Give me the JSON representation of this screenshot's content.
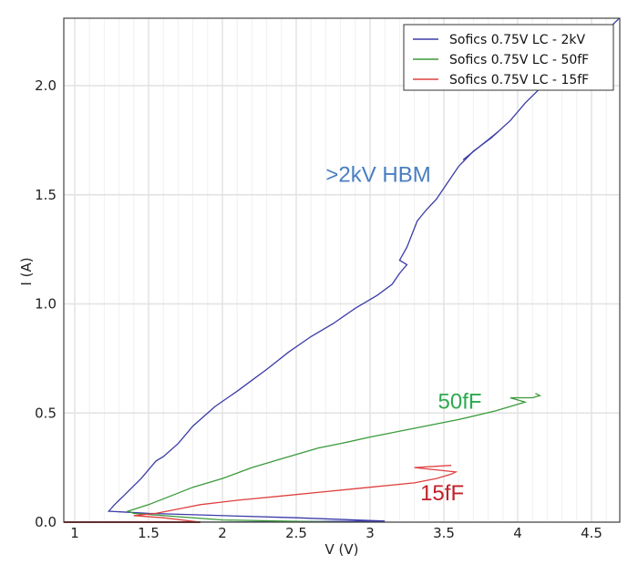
{
  "chart_data": {
    "type": "line",
    "title": "",
    "xlabel": "V (V)",
    "ylabel": "I (A)",
    "xlim": [
      0.93,
      4.69
    ],
    "ylim": [
      0.0,
      2.31
    ],
    "x_ticks": [
      1,
      1.5,
      2,
      2.5,
      3,
      3.5,
      4,
      4.5
    ],
    "x_tick_labels": [
      "1",
      "1.5",
      "2",
      "2.5",
      "3",
      "3.5",
      "4",
      "4.5"
    ],
    "y_ticks": [
      0.0,
      0.5,
      1.0,
      1.5,
      2.0
    ],
    "y_tick_labels": [
      "0.0",
      "0.5",
      "1.0",
      "1.5",
      "2.0"
    ],
    "grid": true,
    "minor_x_grid_step": 0.1,
    "legend_position": "upper right",
    "series": [
      {
        "name": "Sofics 0.75V LC - 2kV",
        "color": "#3b3ba8",
        "points": [
          [
            0.93,
            0.0
          ],
          [
            2.0,
            0.0
          ],
          [
            3.1,
            0.005
          ],
          [
            2.5,
            0.02
          ],
          [
            1.5,
            0.04
          ],
          [
            1.23,
            0.05
          ],
          [
            1.27,
            0.08
          ],
          [
            1.3,
            0.1
          ],
          [
            1.33,
            0.12
          ],
          [
            1.45,
            0.2
          ],
          [
            1.55,
            0.28
          ],
          [
            1.6,
            0.3
          ],
          [
            1.7,
            0.36
          ],
          [
            1.8,
            0.44
          ],
          [
            1.95,
            0.53
          ],
          [
            2.1,
            0.6
          ],
          [
            2.2,
            0.65
          ],
          [
            2.3,
            0.7
          ],
          [
            2.45,
            0.78
          ],
          [
            2.6,
            0.85
          ],
          [
            2.75,
            0.91
          ],
          [
            2.9,
            0.98
          ],
          [
            3.05,
            1.04
          ],
          [
            3.15,
            1.09
          ],
          [
            3.2,
            1.14
          ],
          [
            3.25,
            1.18
          ],
          [
            3.2,
            1.2
          ],
          [
            3.25,
            1.26
          ],
          [
            3.32,
            1.38
          ],
          [
            3.38,
            1.43
          ],
          [
            3.45,
            1.48
          ],
          [
            3.52,
            1.55
          ],
          [
            3.6,
            1.63
          ],
          [
            3.7,
            1.7
          ],
          [
            3.82,
            1.76
          ],
          [
            3.95,
            1.84
          ],
          [
            4.05,
            1.92
          ],
          [
            4.2,
            2.02
          ],
          [
            4.3,
            2.1
          ],
          [
            4.4,
            2.16
          ],
          [
            4.55,
            2.22
          ],
          [
            4.69,
            2.31
          ]
        ],
        "extra_segment": [
          [
            3.63,
            1.66
          ],
          [
            3.87,
            1.79
          ]
        ]
      },
      {
        "name": "Sofics 0.75V LC - 50fF",
        "color": "#3a9a3a",
        "points": [
          [
            0.93,
            0.0
          ],
          [
            1.5,
            0.0
          ],
          [
            2.8,
            0.0
          ],
          [
            2.0,
            0.01
          ],
          [
            1.4,
            0.04
          ],
          [
            1.36,
            0.05
          ],
          [
            1.5,
            0.08
          ],
          [
            1.65,
            0.12
          ],
          [
            1.8,
            0.16
          ],
          [
            2.0,
            0.2
          ],
          [
            2.2,
            0.25
          ],
          [
            2.45,
            0.3
          ],
          [
            2.65,
            0.34
          ],
          [
            2.8,
            0.36
          ],
          [
            3.0,
            0.39
          ],
          [
            3.3,
            0.43
          ],
          [
            3.6,
            0.47
          ],
          [
            3.85,
            0.51
          ],
          [
            4.05,
            0.55
          ],
          [
            3.95,
            0.57
          ],
          [
            4.1,
            0.57
          ],
          [
            4.15,
            0.58
          ],
          [
            4.12,
            0.59
          ]
        ]
      },
      {
        "name": "Sofics 0.75V LC - 15fF",
        "color": "#e04040",
        "points": [
          [
            0.93,
            0.0
          ],
          [
            1.5,
            0.0
          ],
          [
            1.85,
            0.0
          ],
          [
            1.6,
            0.02
          ],
          [
            1.4,
            0.03
          ],
          [
            1.55,
            0.04
          ],
          [
            1.7,
            0.06
          ],
          [
            1.85,
            0.08
          ],
          [
            2.1,
            0.1
          ],
          [
            2.4,
            0.12
          ],
          [
            2.7,
            0.14
          ],
          [
            3.0,
            0.16
          ],
          [
            3.3,
            0.18
          ],
          [
            3.45,
            0.2
          ],
          [
            3.55,
            0.22
          ],
          [
            3.58,
            0.23
          ],
          [
            3.3,
            0.25
          ],
          [
            3.55,
            0.26
          ]
        ]
      }
    ],
    "annotations": [
      {
        "text": ">2kV HBM",
        "x": 2.7,
        "y": 1.56,
        "color": "#4a7fc0"
      },
      {
        "text": "50fF",
        "x": 3.46,
        "y": 0.52,
        "color": "#2eaa50"
      },
      {
        "text": "15fF",
        "x": 3.34,
        "y": 0.1,
        "color": "#c0202a"
      }
    ]
  }
}
